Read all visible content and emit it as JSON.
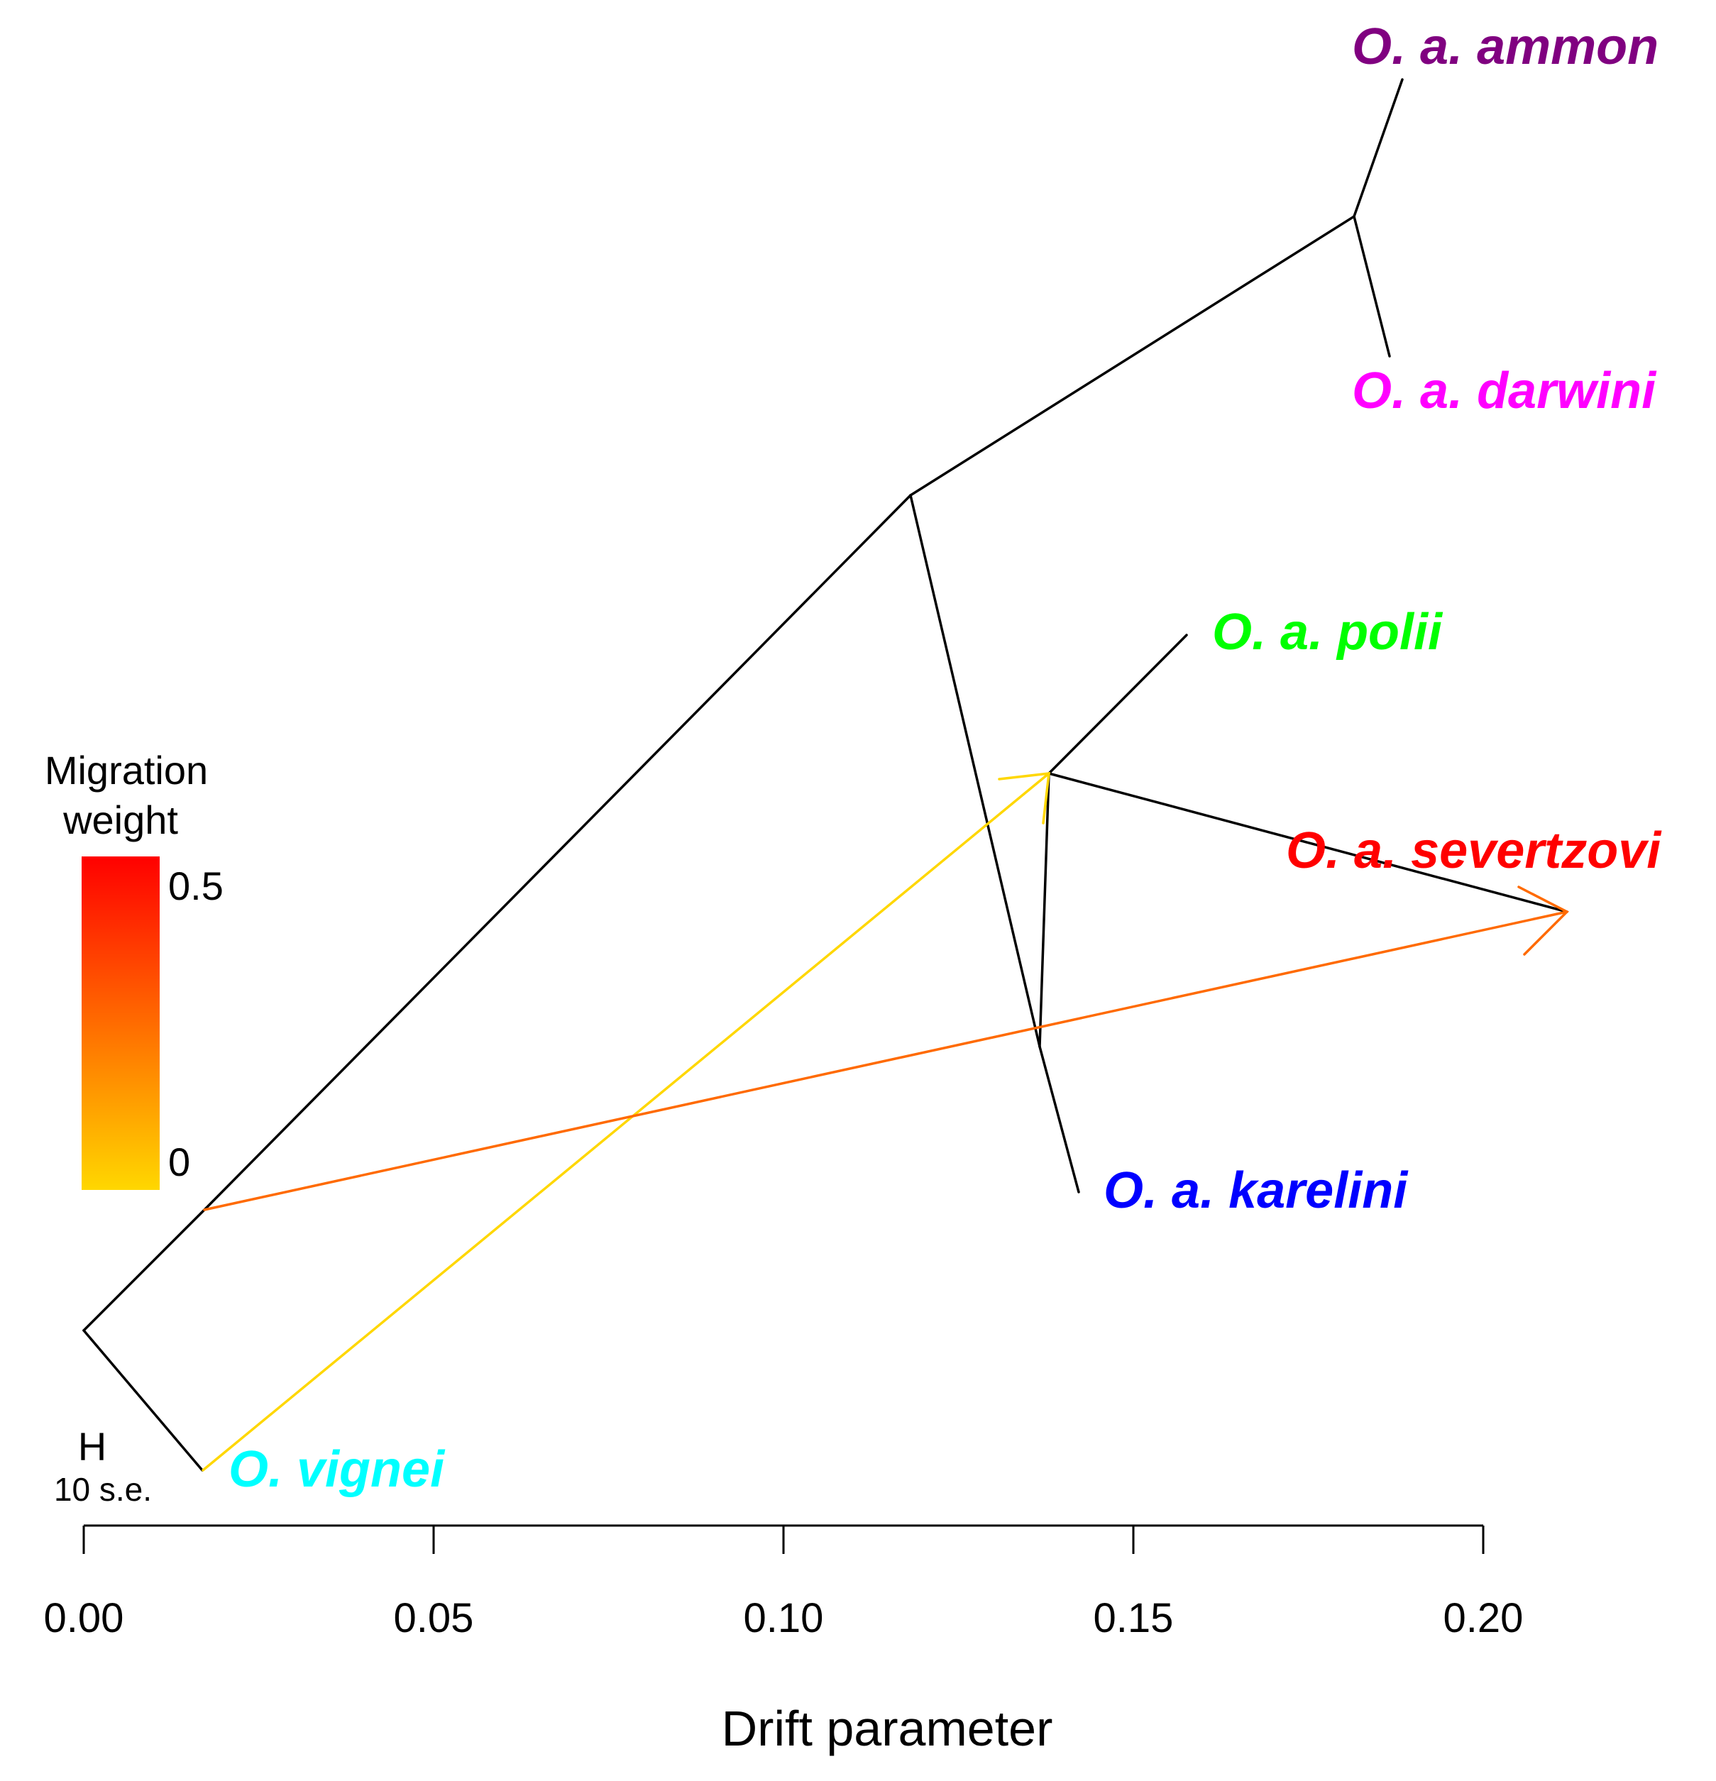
{
  "chart_data": {
    "type": "tree",
    "title": "",
    "xlabel": "Drift parameter",
    "xlim": [
      0.0,
      0.2
    ],
    "x_ticks": [
      "0.00",
      "0.05",
      "0.10",
      "0.15",
      "0.20"
    ],
    "taxa": [
      {
        "id": "ammon",
        "label": "O. a. ammon",
        "color": "#800080",
        "drift": 0.188
      },
      {
        "id": "darwini",
        "label": "O. a. darwini",
        "color": "#ff00ff",
        "drift": 0.187
      },
      {
        "id": "polii",
        "label": "O. a. polii",
        "color": "#00ff00",
        "drift": 0.158
      },
      {
        "id": "severtzovi",
        "label": "O. a. severtzovi",
        "color": "#ff0000",
        "drift": 0.213
      },
      {
        "id": "karelini",
        "label": "O. a. karelini",
        "color": "#0000ff",
        "drift": 0.142
      },
      {
        "id": "vignei",
        "label": "O. vignei",
        "color": "#00ffff",
        "drift": 0.017
      }
    ],
    "nodes": [
      {
        "id": "root",
        "drift": 0.0
      },
      {
        "id": "n_base",
        "drift": 0.017
      },
      {
        "id": "n_main",
        "drift": 0.118
      },
      {
        "id": "n_ammon_darwini",
        "drift": 0.182
      },
      {
        "id": "n_karelini_group",
        "drift": 0.136
      },
      {
        "id": "n_polii_severtzovi",
        "drift": 0.138
      }
    ],
    "edges": [
      {
        "from": "root",
        "to": "vignei"
      },
      {
        "from": "root",
        "to": "n_base"
      },
      {
        "from": "n_base",
        "to": "n_main"
      },
      {
        "from": "n_main",
        "to": "n_ammon_darwini"
      },
      {
        "from": "n_ammon_darwini",
        "to": "ammon"
      },
      {
        "from": "n_ammon_darwini",
        "to": "darwini"
      },
      {
        "from": "n_main",
        "to": "n_karelini_group"
      },
      {
        "from": "n_karelini_group",
        "to": "karelini"
      },
      {
        "from": "n_karelini_group",
        "to": "n_polii_severtzovi"
      },
      {
        "from": "n_polii_severtzovi",
        "to": "polii"
      },
      {
        "from": "n_polii_severtzovi",
        "to": "severtzovi"
      }
    ],
    "migration_edges": [
      {
        "from": "vignei",
        "to": "n_polii_severtzovi",
        "weight": 0.0,
        "color": "#ffd700"
      },
      {
        "from": "n_base",
        "to": "severtzovi",
        "weight": 0.3,
        "color": "#ff6a00"
      }
    ],
    "legend": {
      "title_line1": "Migration",
      "title_line2": "weight",
      "max_label": "0.5",
      "min_label": "0",
      "max_color": "#ff0000",
      "min_color": "#ffd700",
      "position": "left"
    },
    "scale_bar": {
      "symbol": "H",
      "label": "10 s.e."
    }
  }
}
